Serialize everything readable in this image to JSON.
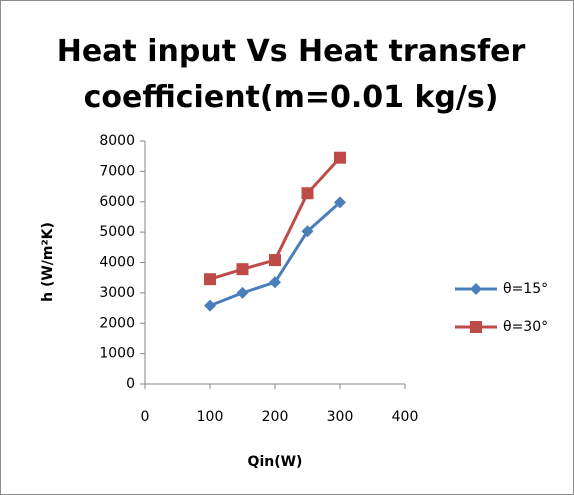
{
  "chart_data": {
    "type": "line",
    "title": "Heat input Vs Heat transfer coefficient(m=0.01 kg/s)",
    "xlabel": "Qin(W)",
    "ylabel": "h (W/m²K)",
    "x": [
      100,
      150,
      200,
      250,
      300
    ],
    "series": [
      {
        "name": "θ=15°",
        "color": "#4a7ebb",
        "marker": "diamond",
        "values": [
          2580,
          3000,
          3350,
          5030,
          5980
        ]
      },
      {
        "name": "θ=30°",
        "color": "#be4b48",
        "marker": "square",
        "values": [
          3450,
          3780,
          4080,
          6280,
          7450
        ]
      }
    ],
    "xlim": [
      0,
      400
    ],
    "xticks": [
      0,
      100,
      200,
      300,
      400
    ],
    "ylim": [
      0,
      8000
    ],
    "yticks": [
      0,
      1000,
      2000,
      3000,
      4000,
      5000,
      6000,
      7000,
      8000
    ],
    "grid": false,
    "legend": "right"
  }
}
